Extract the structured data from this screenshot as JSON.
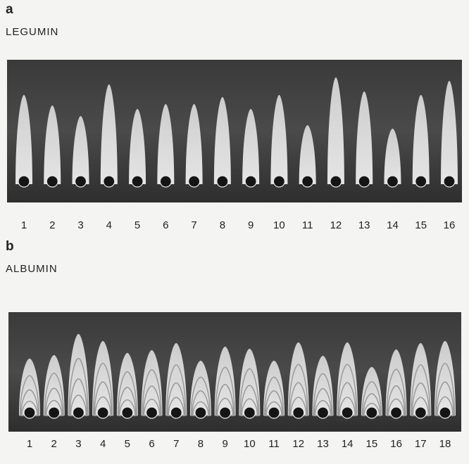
{
  "panels": [
    {
      "label": "a",
      "title": "LEGUMIN",
      "lanes": [
        1,
        2,
        3,
        4,
        5,
        6,
        7,
        8,
        9,
        10,
        11,
        12,
        13,
        14,
        15,
        16
      ]
    },
    {
      "label": "b",
      "title": "ALBUMIN",
      "lanes": [
        1,
        2,
        3,
        4,
        5,
        6,
        7,
        8,
        9,
        10,
        11,
        12,
        13,
        14,
        15,
        16,
        17,
        18
      ]
    }
  ]
}
